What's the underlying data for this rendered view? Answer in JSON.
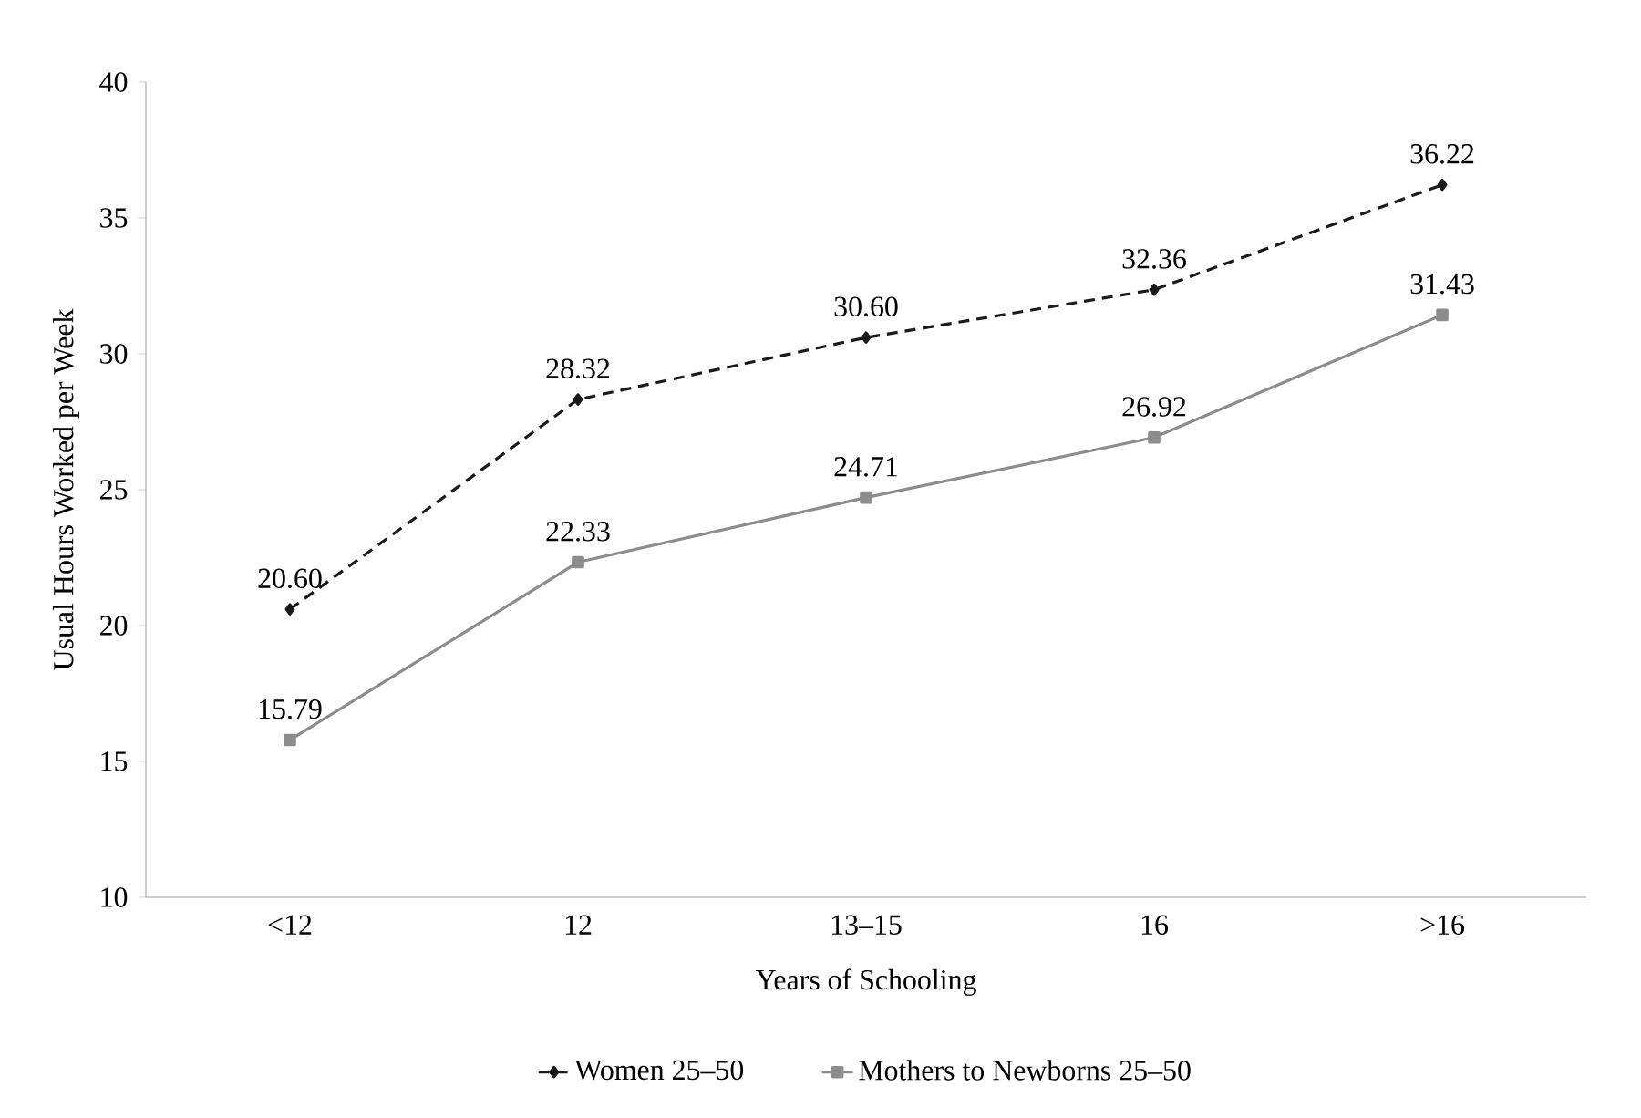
{
  "chart_data": {
    "type": "line",
    "xlabel": "Years of Schooling",
    "ylabel": "Usual Hours Worked per Week",
    "categories": [
      "<12",
      "12",
      "13–15",
      "16",
      ">16"
    ],
    "ylim": [
      10,
      40
    ],
    "yticks": [
      10,
      15,
      20,
      25,
      30,
      35,
      40
    ],
    "legend": "bottom",
    "grid": false,
    "series": [
      {
        "name": "Women 25–50",
        "color": "#1a1a1a",
        "marker": "diamond",
        "line_style": "dashed",
        "values": [
          20.6,
          28.32,
          30.6,
          32.36,
          36.22
        ],
        "value_labels": [
          "20.60",
          "28.32",
          "30.60",
          "32.36",
          "36.22"
        ]
      },
      {
        "name": "Mothers to Newborns 25–50",
        "color": "#8c8c8c",
        "marker": "square",
        "line_style": "solid",
        "values": [
          15.79,
          22.33,
          24.71,
          26.92,
          31.43
        ],
        "value_labels": [
          "15.79",
          "22.33",
          "24.71",
          "26.92",
          "31.43"
        ]
      }
    ]
  }
}
